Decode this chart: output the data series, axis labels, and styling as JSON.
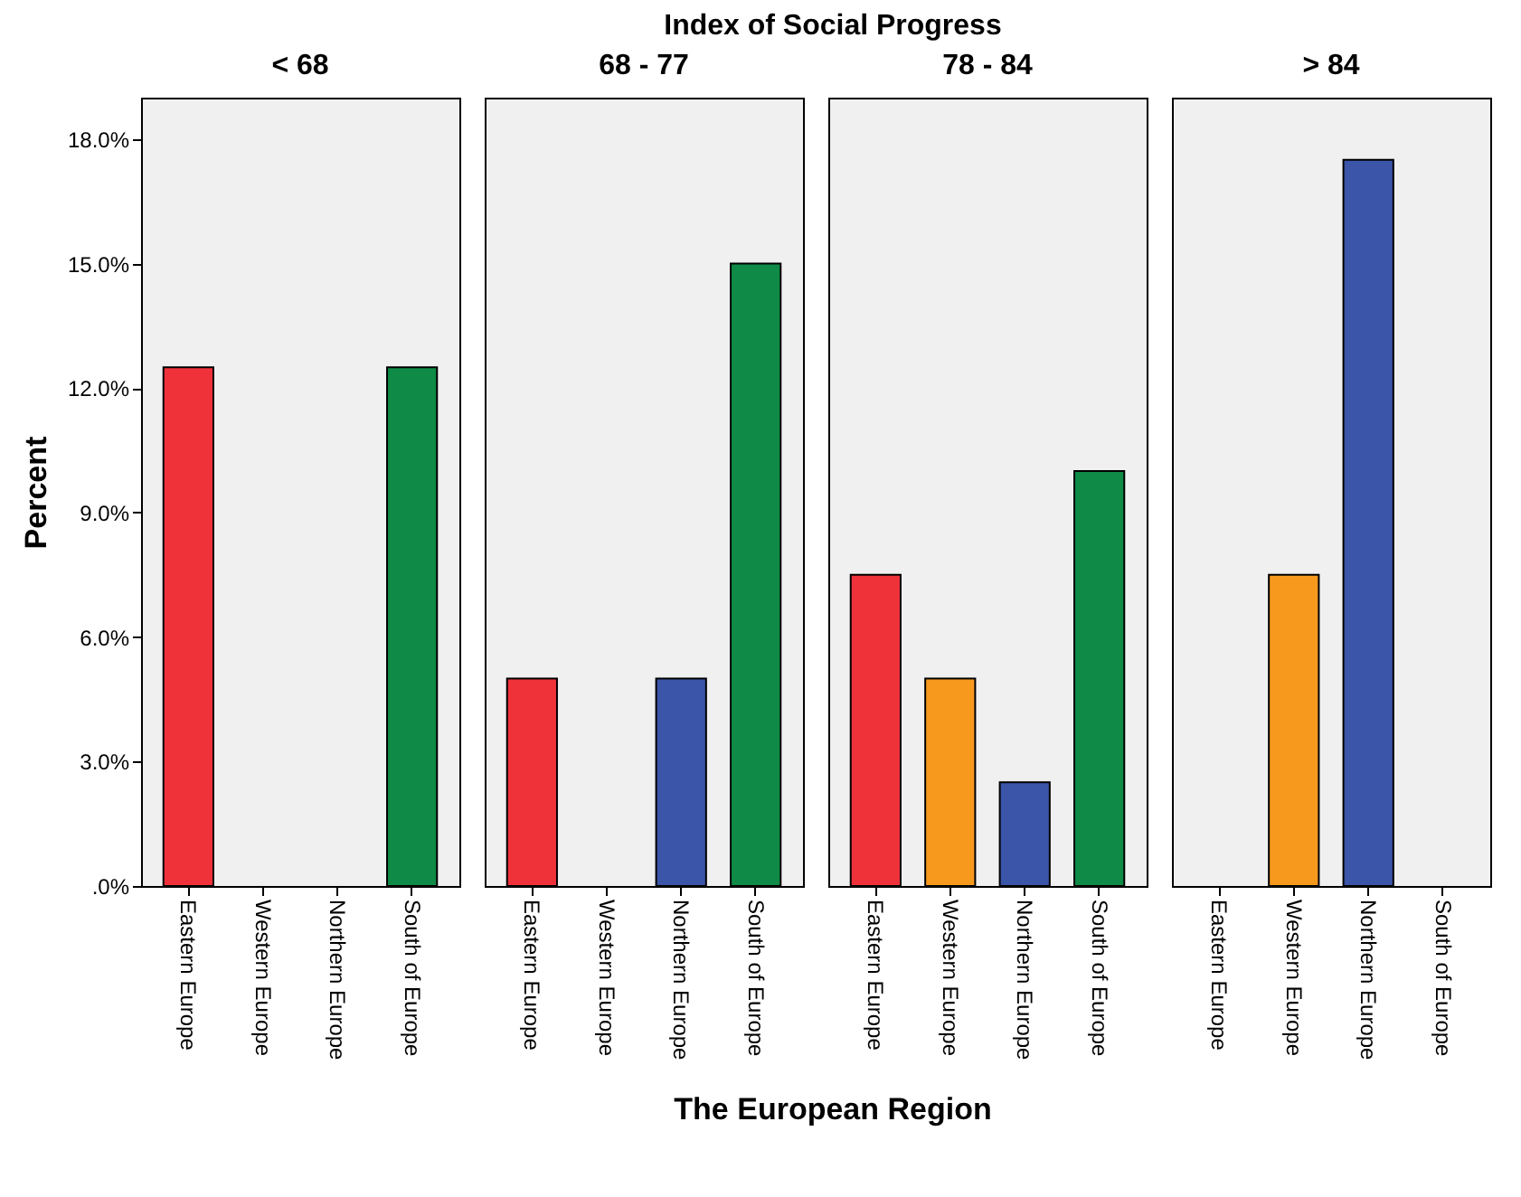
{
  "chart_data": [
    {
      "type": "bar",
      "title": "< 68",
      "annotations": [
        "Index of Social Progress"
      ],
      "ylabel": "Percent",
      "categories": [
        "Eastern Europe",
        "Western Europe",
        "Northern Europe",
        "South of Europe"
      ],
      "values": [
        12.5,
        null,
        null,
        12.5
      ],
      "colors": [
        "#ef323a",
        "#f7991d",
        "#3b55a8",
        "#0f8b47"
      ],
      "ylim": [
        0,
        19
      ],
      "yticks": [
        {
          "value": 0,
          "label": ".0%"
        },
        {
          "value": 3,
          "label": "3.0%"
        },
        {
          "value": 6,
          "label": "6.0%"
        },
        {
          "value": 9,
          "label": "9.0%"
        },
        {
          "value": 12,
          "label": "12.0%"
        },
        {
          "value": 15,
          "label": "15.0%"
        },
        {
          "value": 18,
          "label": "18.0%"
        }
      ],
      "grid": false,
      "legend": false
    },
    {
      "type": "bar",
      "title": "68 - 77",
      "xlabel": "The European Region",
      "categories": [
        "Eastern Europe",
        "Western Europe",
        "Northern Europe",
        "South of Europe"
      ],
      "values": [
        5,
        null,
        5,
        15
      ],
      "colors": [
        "#ef323a",
        "#f7991d",
        "#3b55a8",
        "#0f8b47"
      ],
      "ylim": [
        0,
        19
      ],
      "tick_labels": "x",
      "grid": false,
      "legend": false
    },
    {
      "type": "bar",
      "title": "78 - 84",
      "categories": [
        "Eastern Europe",
        "Western Europe",
        "Northern Europe",
        "South of Europe"
      ],
      "values": [
        7.5,
        5,
        2.5,
        10
      ],
      "colors": [
        "#ef323a",
        "#f7991d",
        "#3b55a8",
        "#0f8b47"
      ],
      "ylim": [
        0,
        19
      ],
      "tick_labels": "x",
      "grid": false,
      "legend": false
    },
    {
      "type": "bar",
      "title": "> 84",
      "categories": [
        "Eastern Europe",
        "Western Europe",
        "Northern Europe",
        "South of Europe"
      ],
      "values": [
        null,
        7.5,
        17.5,
        null
      ],
      "colors": [
        "#ef323a",
        "#f7991d",
        "#3b55a8",
        "#0f8b47"
      ],
      "ylim": [
        0,
        19
      ],
      "tick_labels": "x",
      "grid": false,
      "legend": false
    }
  ]
}
